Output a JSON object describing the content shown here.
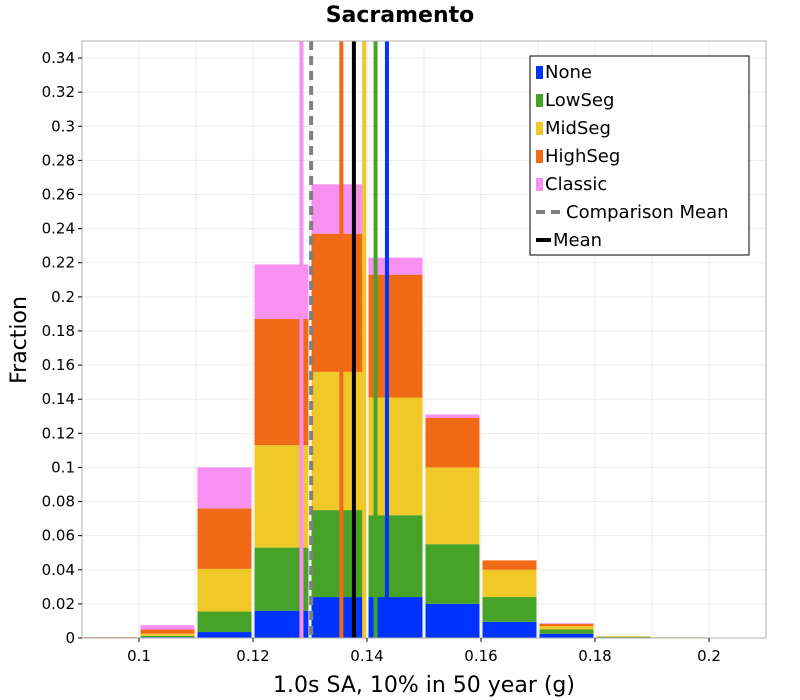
{
  "chart_data": {
    "type": "bar",
    "stacked": true,
    "title": "Sacramento",
    "xlabel": "1.0s SA, 10% in 50 year (g)",
    "ylabel": "Fraction",
    "xlim": [
      0.09,
      0.21
    ],
    "ylim": [
      0,
      0.35
    ],
    "bin_width": 0.01,
    "x_ticks": [
      0.1,
      0.12,
      0.14,
      0.16,
      0.18,
      0.2
    ],
    "x_tick_labels": [
      "0.1",
      "0.12",
      "0.14",
      "0.16",
      "0.18",
      "0.2"
    ],
    "y_ticks": [
      0,
      0.02,
      0.04,
      0.06,
      0.08,
      0.1,
      0.12,
      0.14,
      0.16,
      0.18,
      0.2,
      0.22,
      0.24,
      0.26,
      0.28,
      0.3,
      0.32,
      0.34
    ],
    "y_tick_labels": [
      "0",
      "0.02",
      "0.04",
      "0.06",
      "0.08",
      "0.1",
      "0.12",
      "0.14",
      "0.16",
      "0.18",
      "0.2",
      "0.22",
      "0.24",
      "0.26",
      "0.28",
      "0.3",
      "0.32",
      "0.34"
    ],
    "grid": true,
    "bin_centers": [
      0.095,
      0.105,
      0.115,
      0.125,
      0.135,
      0.145,
      0.155,
      0.165,
      0.175,
      0.185,
      0.195,
      0.205
    ],
    "series": [
      {
        "name": "None",
        "color": "#0033ff",
        "values": [
          0,
          0.0005,
          0.0035,
          0.016,
          0.024,
          0.024,
          0.02,
          0.0095,
          0.0025,
          0.0003,
          0,
          0
        ]
      },
      {
        "name": "LowSeg",
        "color": "#47a228",
        "values": [
          0,
          0.0008,
          0.012,
          0.037,
          0.051,
          0.048,
          0.035,
          0.0145,
          0.0025,
          0.0005,
          0,
          0
        ]
      },
      {
        "name": "MidSeg",
        "color": "#f0c828",
        "values": [
          0.0002,
          0.0012,
          0.025,
          0.06,
          0.081,
          0.069,
          0.045,
          0.016,
          0.002,
          0.0002,
          0.0002,
          0
        ]
      },
      {
        "name": "HighSeg",
        "color": "#f06a16",
        "values": [
          0.0003,
          0.0025,
          0.0355,
          0.074,
          0.081,
          0.072,
          0.029,
          0.0055,
          0.0012,
          0,
          0.0002,
          0.0002
        ]
      },
      {
        "name": "Classic",
        "color": "#f890f2",
        "values": [
          0,
          0.0025,
          0.024,
          0.032,
          0.029,
          0.01,
          0.002,
          0,
          0.0005,
          0,
          0,
          0
        ]
      }
    ],
    "vertical_lines": [
      {
        "series": "None",
        "color": "#0033ff",
        "x": 0.1435,
        "style": "solid"
      },
      {
        "series": "LowSeg",
        "color": "#47a228",
        "x": 0.1415,
        "style": "solid"
      },
      {
        "series": "MidSeg",
        "color": "#f0c828",
        "x": 0.1395,
        "style": "solid"
      },
      {
        "series": "HighSeg",
        "color": "#f06a16",
        "x": 0.1355,
        "style": "solid"
      },
      {
        "series": "Classic",
        "color": "#f890f2",
        "x": 0.1285,
        "style": "solid"
      },
      {
        "series": "Comparison Mean",
        "color": "#808080",
        "x": 0.1302,
        "style": "dashed"
      },
      {
        "series": "Mean",
        "color": "#000000",
        "x": 0.1377,
        "style": "solid"
      }
    ],
    "legend": {
      "position": "top-right",
      "entries": [
        {
          "label": "None",
          "color": "#0033ff",
          "marker": "square"
        },
        {
          "label": "LowSeg",
          "color": "#47a228",
          "marker": "square"
        },
        {
          "label": "MidSeg",
          "color": "#f0c828",
          "marker": "square"
        },
        {
          "label": "HighSeg",
          "color": "#f06a16",
          "marker": "square"
        },
        {
          "label": "Classic",
          "color": "#f890f2",
          "marker": "square"
        },
        {
          "label": "Comparison Mean",
          "color": "#808080",
          "marker": "dashed-line"
        },
        {
          "label": "Mean",
          "color": "#000000",
          "marker": "solid-line"
        }
      ]
    }
  }
}
